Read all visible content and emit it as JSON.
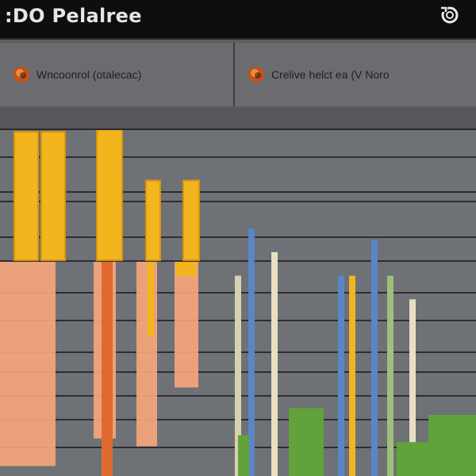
{
  "window": {
    "title": ":DO Pelalree",
    "corner_icon": "recycle-icon"
  },
  "tabs": [
    {
      "label": "Wncoonrol (otalecac)",
      "icon": "orange-orb-icon",
      "active": true
    },
    {
      "label": "Crelive helct ea   (V Noro",
      "icon": "orange-orb-icon",
      "active": false
    }
  ],
  "colors": {
    "titlebar": "#0e0e0e",
    "panel": "#6e7176",
    "yellow": "#f2b51e",
    "peach": "#f5a57a",
    "blue": "#5a86c8",
    "green": "#62a23a"
  },
  "chart_data": {
    "type": "bar",
    "title": "",
    "xlabel": "",
    "ylabel": "",
    "grid": true,
    "series": [
      {
        "values": [
          58,
          58,
          64,
          36,
          36
        ]
      },
      {
        "values": [
          52,
          45,
          47,
          32,
          37
        ]
      },
      {
        "values": [
          17,
          21,
          19,
          17,
          17,
          20,
          17,
          15
        ]
      },
      {
        "values": [
          6,
          10,
          5,
          9
        ]
      }
    ]
  }
}
